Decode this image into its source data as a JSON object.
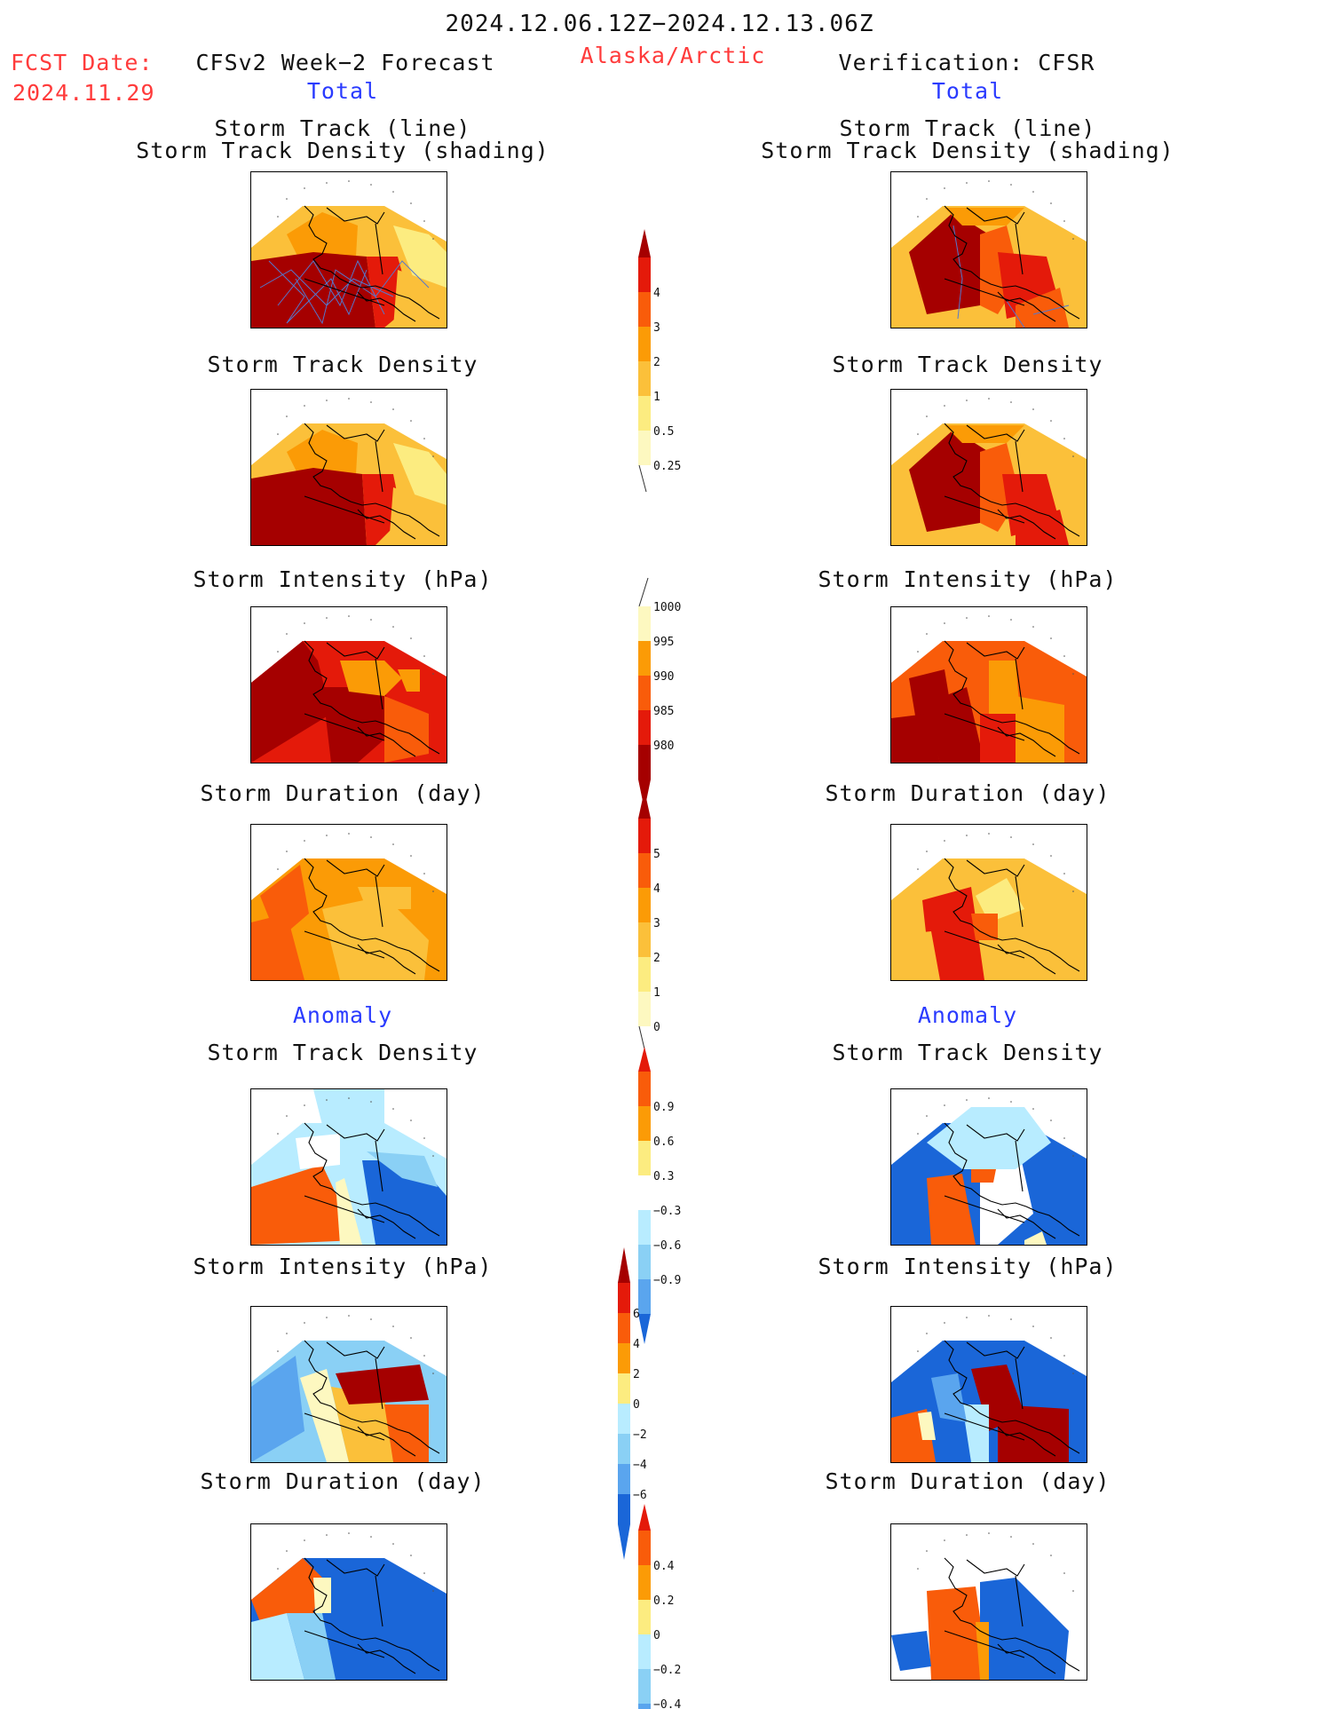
{
  "header": {
    "period": "2024.12.06.12Z−2024.12.13.06Z",
    "fcst_label": "FCST Date:",
    "fcst_date": "2024.11.29",
    "region": "Alaska/Arctic",
    "left_title": "CFSv2 Week−2 Forecast",
    "right_title": "Verification: CFSR",
    "total_label": "Total",
    "anomaly_label": "Anomaly"
  },
  "titles": {
    "track_line": "Storm Track (line)",
    "track_density_shading": "Storm Track Density (shading)",
    "track_density": "Storm Track Density",
    "intensity": "Storm Intensity (hPa)",
    "duration": "Storm Duration (day)"
  },
  "colors": {
    "c_darkred": "#a50000",
    "c_red": "#e41a0a",
    "c_orangered": "#f95c0a",
    "c_orange": "#fb9b06",
    "c_ltorange": "#fbc03a",
    "c_yellow": "#fcec80",
    "c_paleyellow": "#fdf8c0",
    "c_white": "#ffffff",
    "c_paleblue": "#b8ecff",
    "c_ltblue": "#8ad0f5",
    "c_midblue": "#5aa5ee",
    "c_blue": "#1a66d8",
    "track_line": "#5577cc"
  },
  "chart_data": [
    {
      "type": "heatmap",
      "panel": "forecast",
      "section": "Total",
      "title": "Storm Track (line) / Storm Track Density (shading)",
      "colorbar_levels": [
        0.25,
        0.5,
        1,
        2,
        3,
        4
      ]
    },
    {
      "type": "heatmap",
      "panel": "verification",
      "section": "Total",
      "title": "Storm Track (line) / Storm Track Density (shading)",
      "colorbar_levels": [
        0.25,
        0.5,
        1,
        2,
        3,
        4
      ]
    },
    {
      "type": "heatmap",
      "panel": "forecast",
      "section": "Total",
      "title": "Storm Track Density",
      "colorbar_levels": [
        0.25,
        0.5,
        1,
        2,
        3,
        4
      ]
    },
    {
      "type": "heatmap",
      "panel": "verification",
      "section": "Total",
      "title": "Storm Track Density",
      "colorbar_levels": [
        0.25,
        0.5,
        1,
        2,
        3,
        4
      ]
    },
    {
      "type": "heatmap",
      "panel": "forecast",
      "section": "Total",
      "title": "Storm Intensity (hPa)",
      "colorbar_levels": [
        980,
        985,
        990,
        995,
        1000
      ]
    },
    {
      "type": "heatmap",
      "panel": "verification",
      "section": "Total",
      "title": "Storm Intensity (hPa)",
      "colorbar_levels": [
        980,
        985,
        990,
        995,
        1000
      ]
    },
    {
      "type": "heatmap",
      "panel": "forecast",
      "section": "Total",
      "title": "Storm Duration (day)",
      "colorbar_levels": [
        0,
        1,
        2,
        3,
        4,
        5
      ]
    },
    {
      "type": "heatmap",
      "panel": "verification",
      "section": "Total",
      "title": "Storm Duration (day)",
      "colorbar_levels": [
        0,
        1,
        2,
        3,
        4,
        5
      ]
    },
    {
      "type": "heatmap",
      "panel": "forecast",
      "section": "Anomaly",
      "title": "Storm Track Density",
      "colorbar_levels": [
        -0.9,
        -0.6,
        -0.3,
        0.3,
        0.6,
        0.9
      ]
    },
    {
      "type": "heatmap",
      "panel": "verification",
      "section": "Anomaly",
      "title": "Storm Track Density",
      "colorbar_levels": [
        -0.9,
        -0.6,
        -0.3,
        0.3,
        0.6,
        0.9
      ]
    },
    {
      "type": "heatmap",
      "panel": "forecast",
      "section": "Anomaly",
      "title": "Storm Intensity (hPa)",
      "colorbar_levels": [
        -6,
        -4,
        -2,
        0,
        2,
        4,
        6
      ]
    },
    {
      "type": "heatmap",
      "panel": "verification",
      "section": "Anomaly",
      "title": "Storm Intensity (hPa)",
      "colorbar_levels": [
        -6,
        -4,
        -2,
        0,
        2,
        4,
        6
      ]
    },
    {
      "type": "heatmap",
      "panel": "forecast",
      "section": "Anomaly",
      "title": "Storm Duration (day)",
      "colorbar_levels": [
        -0.4,
        -0.2,
        0,
        0.2,
        0.4
      ]
    },
    {
      "type": "heatmap",
      "panel": "verification",
      "section": "Anomaly",
      "title": "Storm Duration (day)",
      "colorbar_levels": [
        -0.4,
        -0.2,
        0,
        0.2,
        0.4
      ]
    }
  ],
  "colorbars": {
    "density": {
      "labels": [
        "4",
        "3",
        "2",
        "1",
        "0.5",
        "0.25"
      ]
    },
    "intensity": {
      "labels": [
        "1000",
        "995",
        "990",
        "985",
        "980"
      ]
    },
    "duration": {
      "labels": [
        "5",
        "4",
        "3",
        "2",
        "1",
        "0"
      ]
    },
    "anom_density": {
      "labels": [
        "0.9",
        "0.6",
        "0.3",
        "−0.3",
        "−0.6",
        "−0.9"
      ]
    },
    "anom_intensity": {
      "labels": [
        "6",
        "4",
        "2",
        "0",
        "−2",
        "−4",
        "−6"
      ]
    },
    "anom_duration": {
      "labels": [
        "0.4",
        "0.2",
        "0",
        "−0.2",
        "−0.4"
      ]
    }
  }
}
